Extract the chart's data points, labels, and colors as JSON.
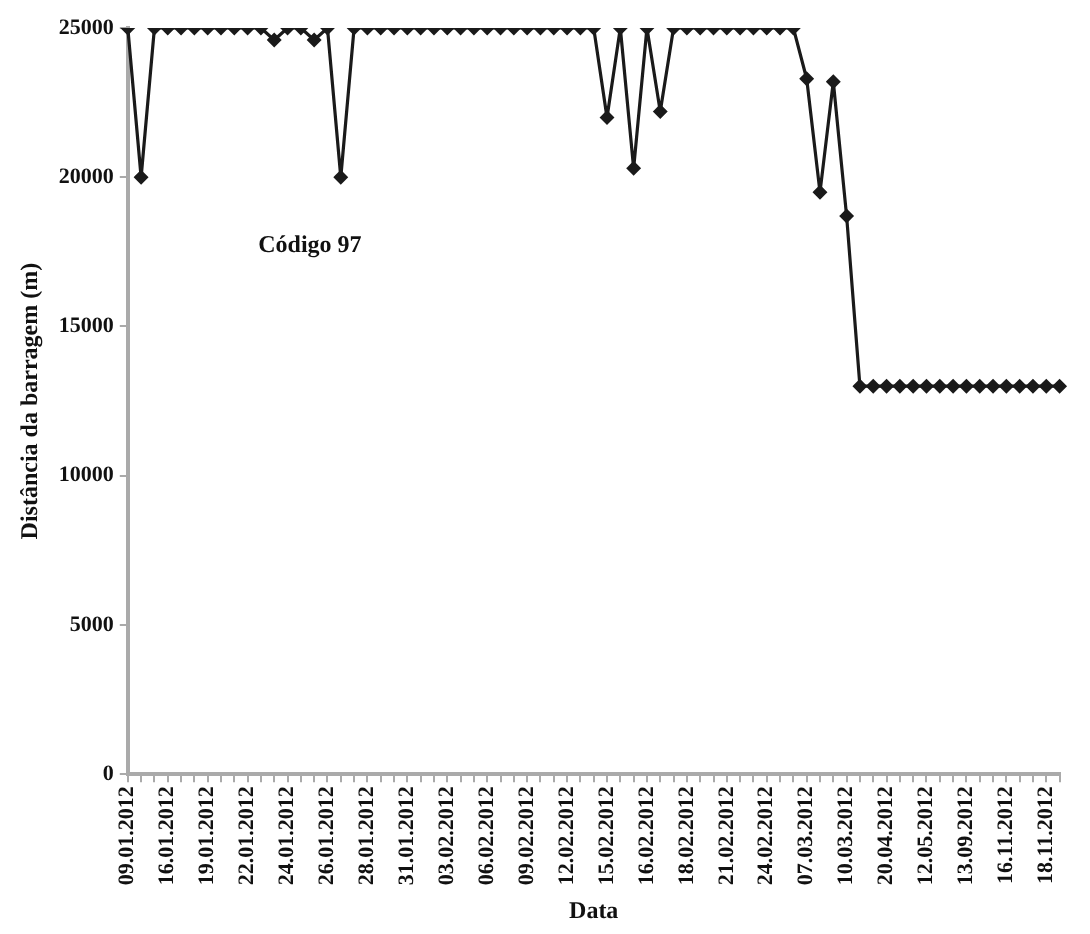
{
  "chart_data": {
    "type": "line",
    "xlabel": "Data",
    "ylabel": "Distância da barragem (m)",
    "annotations": [
      "Código 97"
    ],
    "categories": [
      "09.01.2012",
      null,
      null,
      "16.01.2012",
      null,
      null,
      "19.01.2012",
      null,
      null,
      "22.01.2012",
      null,
      null,
      "24.01.2012",
      null,
      null,
      "26.01.2012",
      null,
      null,
      "28.01.2012",
      null,
      null,
      "31.01.2012",
      null,
      null,
      "03.02.2012",
      null,
      null,
      "06.02.2012",
      null,
      null,
      "09.02.2012",
      null,
      null,
      "12.02.2012",
      null,
      null,
      "15.02.2012",
      null,
      null,
      "16.02.2012",
      null,
      null,
      "18.02.2012",
      null,
      null,
      "21.02.2012",
      null,
      null,
      "24.02.2012",
      null,
      null,
      "07.03.2012",
      null,
      null,
      "10.03.2012",
      null,
      null,
      "20.04.2012",
      null,
      null,
      "12.05.2012",
      null,
      null,
      "13.09.2012",
      null,
      null,
      "16.11.2012",
      null,
      null,
      "18.11.2012",
      null
    ],
    "series": [
      {
        "color": "#1a1a1a",
        "values": [
          25000,
          20000,
          25000,
          25000,
          25000,
          25000,
          25000,
          25000,
          25000,
          25000,
          25000,
          24600,
          25000,
          25000,
          24600,
          25000,
          20000,
          25000,
          25000,
          25000,
          25000,
          25000,
          25000,
          25000,
          25000,
          25000,
          25000,
          25000,
          25000,
          25000,
          25000,
          25000,
          25000,
          25000,
          25000,
          25000,
          22000,
          25000,
          20300,
          25000,
          22200,
          25000,
          25000,
          25000,
          25000,
          25000,
          25000,
          25000,
          25000,
          25000,
          25000,
          23300,
          19500,
          23200,
          18700,
          13000,
          13000,
          13000,
          13000,
          13000,
          13000,
          13000,
          13000,
          13000,
          13000,
          13000,
          13000,
          13000,
          13000,
          13000,
          13000
        ]
      }
    ],
    "ylim": [
      0,
      25000
    ],
    "yticks": [
      0,
      5000,
      10000,
      15000,
      20000,
      25000
    ],
    "marker": "diamond",
    "line_style": "solid"
  }
}
